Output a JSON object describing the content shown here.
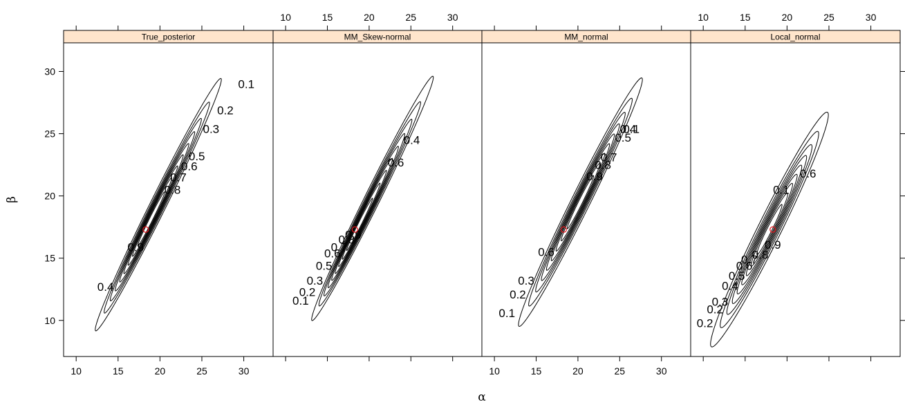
{
  "chart_data": {
    "type": "contour",
    "xlabel": "α",
    "ylabel": "β",
    "xlim": [
      8.5,
      33.5
    ],
    "ylim": [
      7.1,
      32.3
    ],
    "x_ticks": [
      10,
      15,
      20,
      25,
      30
    ],
    "y_ticks": [
      10,
      15,
      20,
      25,
      30
    ],
    "grid": false,
    "colors": {
      "strip": "#ffe5cc",
      "contour": "#000000",
      "point": "#e8141a"
    },
    "contour_levels": [
      0.1,
      0.2,
      0.3,
      0.4,
      0.5,
      0.6,
      0.7,
      0.8,
      0.9
    ],
    "point": {
      "alpha": 18.3,
      "beta": 17.3
    },
    "panels": [
      {
        "title": "True_posterior",
        "ellipse": {
          "cx": 19.8,
          "cy": 19.3,
          "a": 12.6,
          "b": 0.85,
          "angle_deg": 53.5,
          "shift": 1.8
        },
        "labels": [
          {
            "text": "0.1",
            "x": 30.3,
            "y": 29.0
          },
          {
            "text": "0.2",
            "x": 27.8,
            "y": 26.9
          },
          {
            "text": "0.3",
            "x": 26.1,
            "y": 25.4
          },
          {
            "text": "0.5",
            "x": 24.4,
            "y": 23.2
          },
          {
            "text": "0.6",
            "x": 23.5,
            "y": 22.4
          },
          {
            "text": "0.7",
            "x": 22.2,
            "y": 21.5
          },
          {
            "text": "0.8",
            "x": 21.5,
            "y": 20.5
          },
          {
            "text": "0.9",
            "x": 17.1,
            "y": 15.9
          },
          {
            "text": "0.4",
            "x": 13.5,
            "y": 12.7
          }
        ]
      },
      {
        "title": "MM_Skew-normal",
        "ellipse": {
          "cx": 20.4,
          "cy": 19.8,
          "a": 12.2,
          "b": 0.82,
          "angle_deg": 53.5,
          "shift": 3.3
        },
        "labels": [
          {
            "text": "0.4",
            "x": 25.1,
            "y": 24.5
          },
          {
            "text": "0.6",
            "x": 23.2,
            "y": 22.7
          },
          {
            "text": "0.9",
            "x": 18.1,
            "y": 16.9
          },
          {
            "text": "0.8",
            "x": 17.3,
            "y": 16.5
          },
          {
            "text": "0.7",
            "x": 16.4,
            "y": 15.9
          },
          {
            "text": "0.6",
            "x": 15.6,
            "y": 15.4
          },
          {
            "text": "0.5",
            "x": 14.6,
            "y": 14.4
          },
          {
            "text": "0.3",
            "x": 13.5,
            "y": 13.2
          },
          {
            "text": "0.2",
            "x": 12.6,
            "y": 12.3
          },
          {
            "text": "0.1",
            "x": 11.8,
            "y": 11.6
          }
        ]
      },
      {
        "title": "MM_normal",
        "ellipse": {
          "cx": 20.3,
          "cy": 19.5,
          "a": 12.4,
          "b": 1.0,
          "angle_deg": 53.5,
          "shift": 0.0
        },
        "labels": [
          {
            "text": "0.1",
            "x": 26.4,
            "y": 25.4
          },
          {
            "text": "0.4",
            "x": 26.0,
            "y": 25.4
          },
          {
            "text": "0.5",
            "x": 25.4,
            "y": 24.7
          },
          {
            "text": "0.7",
            "x": 23.7,
            "y": 23.1
          },
          {
            "text": "0.8",
            "x": 23.0,
            "y": 22.5
          },
          {
            "text": "0.9",
            "x": 22.0,
            "y": 21.6
          },
          {
            "text": "0.6",
            "x": 16.2,
            "y": 15.5
          },
          {
            "text": "0.3",
            "x": 13.8,
            "y": 13.2
          },
          {
            "text": "0.2",
            "x": 12.8,
            "y": 12.1
          },
          {
            "text": "0.1",
            "x": 11.5,
            "y": 10.6
          }
        ]
      },
      {
        "title": "Local_normal",
        "ellipse": {
          "cx": 17.9,
          "cy": 17.3,
          "a": 11.7,
          "b": 1.25,
          "angle_deg": 53.5,
          "shift": 0.0
        },
        "labels": [
          {
            "text": "0.1",
            "x": 19.3,
            "y": 20.5
          },
          {
            "text": "0.6",
            "x": 22.5,
            "y": 21.8
          },
          {
            "text": "0.9",
            "x": 18.3,
            "y": 16.1
          },
          {
            "text": "0.8",
            "x": 16.8,
            "y": 15.3
          },
          {
            "text": "0.7",
            "x": 15.5,
            "y": 14.9
          },
          {
            "text": "0.6",
            "x": 14.9,
            "y": 14.4
          },
          {
            "text": "0.5",
            "x": 14.0,
            "y": 13.6
          },
          {
            "text": "0.4",
            "x": 13.2,
            "y": 12.8
          },
          {
            "text": "0.3",
            "x": 12.0,
            "y": 11.5
          },
          {
            "text": "0.2",
            "x": 11.4,
            "y": 10.9
          },
          {
            "text": "0.2",
            "x": 10.2,
            "y": 9.8
          }
        ]
      }
    ]
  }
}
